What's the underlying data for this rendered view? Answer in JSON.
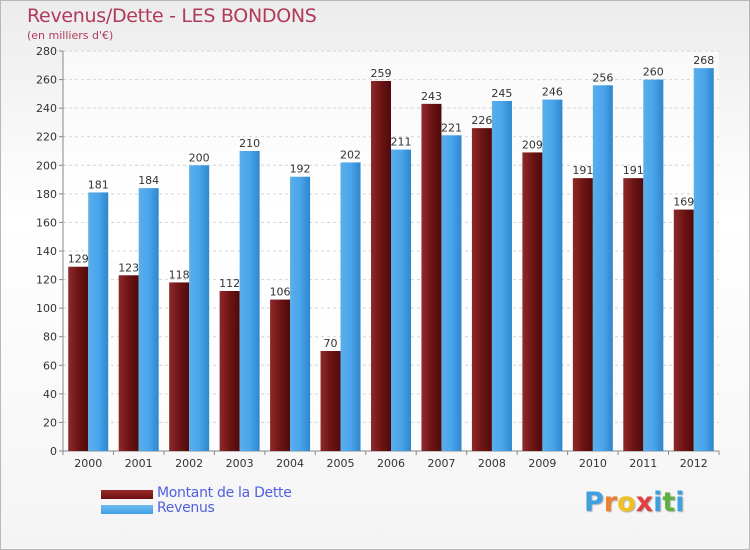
{
  "title": "Revenus/Dette - LES BONDONS",
  "subtitle": "(en milliers d'€)",
  "logo": {
    "letters": [
      "P",
      "r",
      "o",
      "x",
      "i",
      "t",
      "i"
    ],
    "colors": [
      "#3fa0e0",
      "#f08030",
      "#f0c020",
      "#e04040",
      "#3fa0e0",
      "#60b040",
      "#3fa0e0"
    ]
  },
  "legend": [
    {
      "label": "Montant de la Dette",
      "color": "#6e0f10"
    },
    {
      "label": "Revenus",
      "color": "#3f9fe5"
    }
  ],
  "chart_data": {
    "type": "bar",
    "categories": [
      "2000",
      "2001",
      "2002",
      "2003",
      "2004",
      "2005",
      "2006",
      "2007",
      "2008",
      "2009",
      "2010",
      "2011",
      "2012"
    ],
    "series": [
      {
        "name": "Montant de la Dette",
        "color": "#6e0f10",
        "values": [
          129,
          123,
          118,
          112,
          106,
          70,
          259,
          243,
          226,
          209,
          191,
          191,
          169
        ]
      },
      {
        "name": "Revenus",
        "color": "#3f9fe5",
        "values": [
          181,
          184,
          200,
          210,
          192,
          202,
          211,
          221,
          245,
          246,
          256,
          260,
          268
        ]
      }
    ],
    "ylim": [
      0,
      280
    ],
    "yticks": [
      0,
      20,
      40,
      60,
      80,
      100,
      120,
      140,
      160,
      180,
      200,
      220,
      240,
      260,
      280
    ],
    "xlabel": "",
    "ylabel": "",
    "grid": true,
    "data_labels": [
      "129",
      "123",
      "118",
      "112",
      "106",
      "70",
      "259",
      "243",
      "226",
      "209",
      "191",
      "191",
      "169",
      "181",
      "184",
      "200",
      "210",
      "192",
      "202",
      "211",
      "221",
      "245",
      "246",
      "256",
      "260",
      "268"
    ]
  }
}
